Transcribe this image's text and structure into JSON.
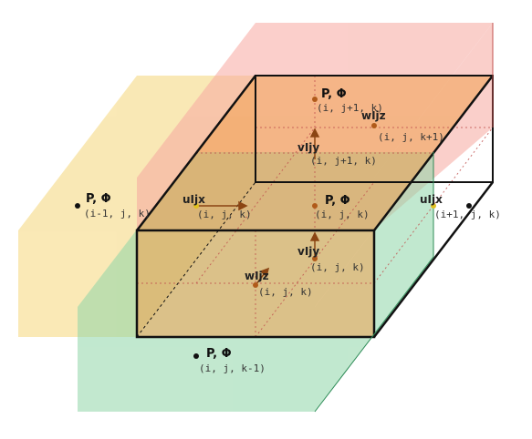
{
  "colors": {
    "yellow": "#f5d77a",
    "orange": "#f0a050",
    "pink": "#f7a8a0",
    "green": "#8fd6a8",
    "cube_edge": "#111111",
    "dot": "#b05a1a"
  },
  "labels": {
    "p_top": "P, Φ",
    "idx_top": "(i, j+1, k)",
    "w_top": "wIjz",
    "idx_w_top": "(i, j, k+1)",
    "v_top": "vIjy",
    "idx_v_top": "(i, j+1, k)",
    "p_left": "P, Φ",
    "idx_left": "(i-1, j, k)",
    "u_left": "uIjx",
    "idx_u_left": "(i, j, k)",
    "p_center": "P, Φ",
    "idx_center": "(i, j, k)",
    "u_right": "uIjx",
    "idx_u_right": "(i+1, j, k)",
    "v_bottom": "vIjy",
    "idx_v_bottom": "(i, j, k)",
    "w_bottom": "wIjz",
    "idx_w_bottom": "(i, j, k)",
    "p_bottom": "P, Φ",
    "idx_bottom": "(i, j, k-1)"
  }
}
